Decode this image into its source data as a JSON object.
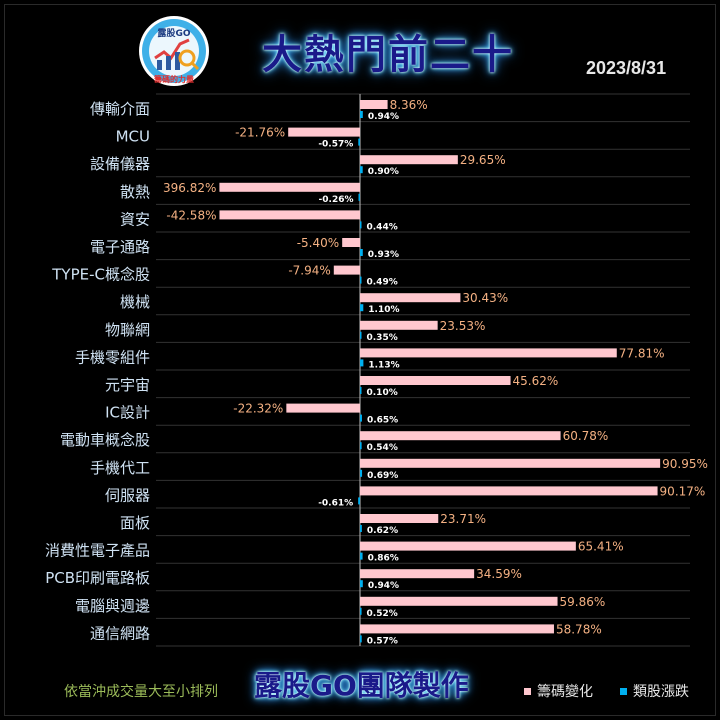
{
  "header": {
    "title": "大熱門前二十",
    "date": "2023/8/31",
    "logo": {
      "text_top": "露股GO",
      "text_bottom": "籌碼的力量",
      "icon": "chart-magnifier-logo"
    }
  },
  "footer": {
    "note": "依當沖成交量大至小排列",
    "team": "露股GO團隊製作"
  },
  "colors": {
    "chip_change": "#ffc7ce",
    "sector_change": "#00b0f0",
    "label_value": "#f4b183",
    "small_value": "#ffffff",
    "category_text": "#cfe2f3",
    "background": "#000000"
  },
  "chart_data": {
    "type": "bar",
    "orientation": "horizontal",
    "categories": [
      "傳輸介面",
      "MCU",
      "設備儀器",
      "散熱",
      "資安",
      "電子通路",
      "TYPE-C概念股",
      "機械",
      "物聯網",
      "手機零組件",
      "元宇宙",
      "IC設計",
      "電動車概念股",
      "手機代工",
      "伺服器",
      "面板",
      "消費性電子產品",
      "PCB印刷電路板",
      "電腦與週邊",
      "通信網路"
    ],
    "series": [
      {
        "name": "籌碼變化",
        "color": "#ffc7ce",
        "values": [
          8.36,
          -21.76,
          29.65,
          396.82,
          -42.58,
          -5.4,
          -7.94,
          30.43,
          23.53,
          77.81,
          45.62,
          -22.32,
          60.78,
          90.95,
          90.17,
          23.71,
          65.41,
          34.59,
          59.86,
          58.78
        ],
        "labels": [
          "8.36%",
          "-21.76%",
          "29.65%",
          "396.82%",
          "-42.58%",
          "-5.40%",
          "-7.94%",
          "30.43%",
          "23.53%",
          "77.81%",
          "45.62%",
          "-22.32%",
          "60.78%",
          "90.95%",
          "90.17%",
          "23.71%",
          "65.41%",
          "34.59%",
          "59.86%",
          "58.78%"
        ]
      },
      {
        "name": "類股漲跌",
        "color": "#00b0f0",
        "values": [
          0.94,
          -0.57,
          0.9,
          -0.26,
          0.44,
          0.93,
          0.49,
          1.1,
          0.35,
          1.13,
          0.1,
          0.65,
          0.54,
          0.69,
          -0.61,
          0.62,
          0.86,
          0.94,
          0.52,
          0.57
        ],
        "labels": [
          "0.94%",
          "-0.57%",
          "0.90%",
          "-0.26%",
          "0.44%",
          "0.93%",
          "0.49%",
          "1.10%",
          "0.35%",
          "1.13%",
          "0.10%",
          "0.65%",
          "0.54%",
          "0.69%",
          "-0.61%",
          "0.62%",
          "0.86%",
          "0.94%",
          "0.52%",
          "0.57%"
        ]
      }
    ],
    "grid": true,
    "legend": "bottom-right"
  }
}
